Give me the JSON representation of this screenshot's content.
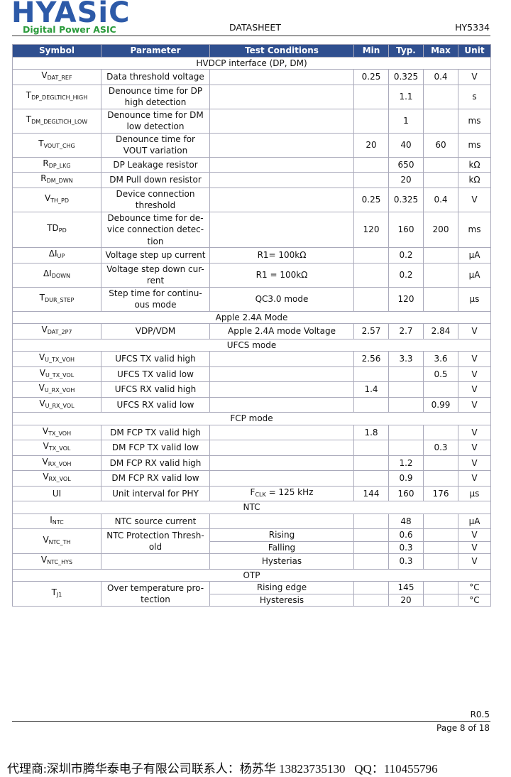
{
  "header": {
    "logo": "HYASiC",
    "tagline": "Digital Power ASIC",
    "doc_type": "DATASHEET",
    "part": "HY5334"
  },
  "table": {
    "columns": [
      "Symbol",
      "Parameter",
      "Test Conditions",
      "Min",
      "Typ.",
      "Max",
      "Unit"
    ],
    "rows": [
      {
        "section": "HVDCP interface (DP, DM)"
      },
      {
        "symbol": {
          "text": "V",
          "sub": "DAT_REF"
        },
        "parameter": [
          "Data threshold voltage"
        ],
        "min": 0.25,
        "typ": 0.325,
        "max": 0.4,
        "unit": "V"
      },
      {
        "symbol": {
          "text": "T",
          "sub": "DP_DEGLTICH_HIGH"
        },
        "parameter": [
          "Denounce time for DP",
          "high detection"
        ],
        "typ": 1.1,
        "unit": "s"
      },
      {
        "symbol": {
          "text": "T",
          "sub": "DM_DEGLTICH_LOW"
        },
        "parameter": [
          "Denounce time for DM",
          "low detection"
        ],
        "typ": 1,
        "unit": "ms"
      },
      {
        "symbol": {
          "text": "T",
          "sub": "VOUT_CHG"
        },
        "parameter": [
          "Denounce time for",
          "VOUT variation"
        ],
        "min": 20,
        "typ": 40,
        "max": 60,
        "unit": "ms"
      },
      {
        "symbol": {
          "text": "R",
          "sub": "DP_LKG"
        },
        "parameter": [
          "DP Leakage resistor"
        ],
        "typ": 650,
        "unit": "kΩ"
      },
      {
        "symbol": {
          "text": "R",
          "sub": "DM_DWN"
        },
        "parameter": [
          "DM Pull down resistor"
        ],
        "typ": 20,
        "unit": "kΩ"
      },
      {
        "symbol": {
          "text": "V",
          "sub": "TH_PD"
        },
        "parameter": [
          "Device connection",
          "threshold"
        ],
        "min": 0.25,
        "typ": 0.325,
        "max": 0.4,
        "unit": "V"
      },
      {
        "symbol": {
          "text": "TD",
          "sub": "PD"
        },
        "parameter": [
          "Debounce time for de-",
          "vice connection detec-",
          "tion"
        ],
        "min": 120,
        "typ": 160,
        "max": 200,
        "unit": "ms"
      },
      {
        "symbol": {
          "text": "ΔI",
          "sub": "UP"
        },
        "parameter": [
          "Voltage step up current"
        ],
        "conditions": "R1= 100kΩ",
        "typ": 0.2,
        "unit": "µA"
      },
      {
        "symbol": {
          "text": "ΔI",
          "sub": "DOWN"
        },
        "parameter": [
          "Voltage step down cur-",
          "rent"
        ],
        "conditions": "R1 = 100kΩ",
        "typ": 0.2,
        "unit": "µA"
      },
      {
        "symbol": {
          "text": "T",
          "sub": "DUR_STEP"
        },
        "parameter": [
          "Step time for continu-",
          "ous mode"
        ],
        "conditions": "QC3.0 mode",
        "typ": 120,
        "unit": "µs"
      },
      {
        "section": "Apple 2.4A Mode"
      },
      {
        "symbol": {
          "text": "V",
          "sub": "DAT_2P7"
        },
        "parameter": [
          "VDP/VDM"
        ],
        "conditions": "Apple 2.4A mode Voltage",
        "min": 2.57,
        "typ": 2.7,
        "max": 2.84,
        "unit": "V"
      },
      {
        "section": "UFCS mode"
      },
      {
        "symbol": {
          "text": "V",
          "sub": "U_TX_VOH"
        },
        "parameter": [
          "UFCS TX valid high"
        ],
        "min": 2.56,
        "typ": 3.3,
        "max": 3.6,
        "unit": "V"
      },
      {
        "symbol": {
          "text": "V",
          "sub": "U_TX_VOL"
        },
        "parameter": [
          "UFCS TX valid low"
        ],
        "max": 0.5,
        "unit": "V"
      },
      {
        "symbol": {
          "text": "V",
          "sub": "U_RX_VOH"
        },
        "parameter": [
          "UFCS RX valid high"
        ],
        "min": 1.4,
        "unit": "V"
      },
      {
        "symbol": {
          "text": "V",
          "sub": "U_RX_VOL"
        },
        "parameter": [
          "UFCS RX valid low"
        ],
        "max": 0.99,
        "unit": "V"
      },
      {
        "section": "FCP mode"
      },
      {
        "symbol": {
          "text": "V",
          "sub": "TX_VOH"
        },
        "parameter": [
          "DM FCP TX valid high"
        ],
        "min": 1.8,
        "unit": "V"
      },
      {
        "symbol": {
          "text": "V",
          "sub": "TX_VOL"
        },
        "parameter": [
          "DM FCP TX valid low"
        ],
        "max": 0.3,
        "unit": "V"
      },
      {
        "symbol": {
          "text": "V",
          "sub": "RX_VOH"
        },
        "parameter": [
          "DM FCP RX valid high"
        ],
        "typ": 1.2,
        "unit": "V"
      },
      {
        "symbol": {
          "text": "V",
          "sub": "RX_VOL"
        },
        "parameter": [
          "DM FCP RX valid low"
        ],
        "typ": 0.9,
        "unit": "V"
      },
      {
        "symbol": {
          "text": "UI"
        },
        "parameter": [
          "Unit interval for PHY"
        ],
        "conditions": {
          "text": "F",
          "sub": "CLK",
          "tail": " = 125 kHz"
        },
        "min": 144,
        "typ": 160,
        "max": 176,
        "unit": "µs"
      },
      {
        "section": "NTC"
      },
      {
        "symbol": {
          "text": "I",
          "sub": "NTC"
        },
        "parameter": [
          "NTC source current"
        ],
        "typ": 48,
        "unit": "µA"
      },
      {
        "symbol": {
          "text": "V",
          "sub": "NTC_TH"
        },
        "parameter": [
          "NTC Protection Thresh-",
          "old"
        ],
        "sub_rows": [
          {
            "conditions": "Rising",
            "typ": 0.6,
            "unit": "V"
          },
          {
            "conditions": "Falling",
            "typ": 0.3,
            "unit": "V"
          }
        ]
      },
      {
        "symbol": {
          "text": "V",
          "sub": "NTC_HYS"
        },
        "conditions": "Hysterias",
        "typ": 0.3,
        "unit": "V"
      },
      {
        "section": "OTP"
      },
      {
        "symbol": {
          "text": "T",
          "sub": "J1"
        },
        "parameter": [
          "Over temperature pro-",
          "tection"
        ],
        "sub_rows": [
          {
            "conditions": "Rising edge",
            "typ": 145,
            "unit": "°C"
          },
          {
            "conditions": "Hysteresis",
            "typ": 20,
            "unit": "°C"
          }
        ]
      }
    ]
  },
  "footer": {
    "revision": "R0.5",
    "page": "Page 8 of 18",
    "contact": "代理商:深圳市腾华泰电子有限公司联系人：杨苏华 13823735130   QQ：110455796"
  }
}
